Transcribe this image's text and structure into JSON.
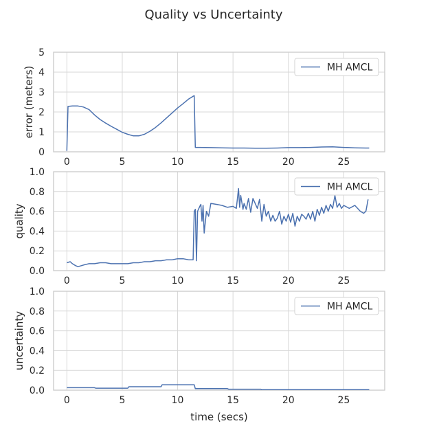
{
  "chart_data": {
    "type": "line",
    "title": "Quality vs Uncertainty",
    "color": "#4c72b0",
    "legend_position": "top-right",
    "grid": true,
    "xlabel": "time (secs)",
    "xlim": [
      -1.2,
      28.7
    ],
    "xticks": [
      0,
      5,
      10,
      15,
      20,
      25
    ],
    "subplots": [
      {
        "ylabel": "error (meters)",
        "ylim": [
          0,
          5
        ],
        "yticks": [
          "0",
          "1",
          "2",
          "3",
          "4",
          "5"
        ],
        "ytick_values": [
          0,
          1,
          2,
          3,
          4,
          5
        ],
        "series": [
          {
            "name": "MH AMCL",
            "x": [
              0,
              0.1,
              0.5,
              1.0,
              1.5,
              2.0,
              2.5,
              3.0,
              3.5,
              4.0,
              4.5,
              5.0,
              5.5,
              6.0,
              6.5,
              7.0,
              7.5,
              8.0,
              8.5,
              9.0,
              9.5,
              10.0,
              10.5,
              11.0,
              11.5,
              11.6,
              12.0,
              13.0,
              14.0,
              15.0,
              16.0,
              17.0,
              18.0,
              19.0,
              20.0,
              21.0,
              22.0,
              23.0,
              24.0,
              25.0,
              26.0,
              27.0,
              27.3
            ],
            "y": [
              0.05,
              2.28,
              2.3,
              2.3,
              2.25,
              2.12,
              1.85,
              1.62,
              1.44,
              1.28,
              1.13,
              0.98,
              0.88,
              0.8,
              0.8,
              0.88,
              1.03,
              1.22,
              1.45,
              1.7,
              1.95,
              2.2,
              2.42,
              2.65,
              2.82,
              0.22,
              0.22,
              0.21,
              0.2,
              0.19,
              0.19,
              0.18,
              0.18,
              0.19,
              0.21,
              0.21,
              0.22,
              0.24,
              0.25,
              0.22,
              0.2,
              0.19,
              0.19
            ]
          }
        ]
      },
      {
        "ylabel": "quality",
        "ylim": [
          0,
          1
        ],
        "yticks": [
          "0.0",
          "0.2",
          "0.4",
          "0.6",
          "0.8",
          "1.0"
        ],
        "ytick_values": [
          0,
          0.2,
          0.4,
          0.6,
          0.8,
          1.0
        ],
        "series": [
          {
            "name": "MH AMCL",
            "x": [
              0,
              0.3,
              0.5,
              0.8,
              1.0,
              1.3,
              1.6,
              2.0,
              2.5,
              3.0,
              3.5,
              4.0,
              4.5,
              5.0,
              5.5,
              6.0,
              6.5,
              7.0,
              7.5,
              8.0,
              8.5,
              9.0,
              9.5,
              10.0,
              10.5,
              11.0,
              11.4,
              11.5,
              11.6,
              11.7,
              11.8,
              12.0,
              12.1,
              12.2,
              12.3,
              12.4,
              12.6,
              12.8,
              13.0,
              13.5,
              14.0,
              14.5,
              15.0,
              15.3,
              15.5,
              15.6,
              15.7,
              15.9,
              16.0,
              16.2,
              16.4,
              16.6,
              16.8,
              17.0,
              17.2,
              17.4,
              17.6,
              17.8,
              18.0,
              18.2,
              18.4,
              18.6,
              18.8,
              19.0,
              19.2,
              19.4,
              19.6,
              19.8,
              20.0,
              20.2,
              20.4,
              20.6,
              20.8,
              21.0,
              21.2,
              21.4,
              21.6,
              21.8,
              22.0,
              22.2,
              22.4,
              22.6,
              22.8,
              23.0,
              23.2,
              23.4,
              23.6,
              23.8,
              24.0,
              24.2,
              24.4,
              24.6,
              24.8,
              25.0,
              25.5,
              26.0,
              26.5,
              26.8,
              27.0,
              27.2
            ],
            "y": [
              0.08,
              0.09,
              0.07,
              0.05,
              0.04,
              0.05,
              0.06,
              0.07,
              0.07,
              0.08,
              0.08,
              0.07,
              0.07,
              0.07,
              0.07,
              0.08,
              0.08,
              0.09,
              0.09,
              0.1,
              0.1,
              0.11,
              0.11,
              0.12,
              0.12,
              0.11,
              0.11,
              0.6,
              0.62,
              0.1,
              0.6,
              0.65,
              0.67,
              0.5,
              0.66,
              0.38,
              0.6,
              0.55,
              0.68,
              0.67,
              0.66,
              0.64,
              0.65,
              0.63,
              0.83,
              0.64,
              0.76,
              0.62,
              0.68,
              0.62,
              0.73,
              0.59,
              0.73,
              0.68,
              0.63,
              0.72,
              0.5,
              0.67,
              0.55,
              0.6,
              0.5,
              0.56,
              0.5,
              0.53,
              0.6,
              0.47,
              0.55,
              0.5,
              0.57,
              0.49,
              0.58,
              0.45,
              0.55,
              0.5,
              0.57,
              0.55,
              0.52,
              0.58,
              0.52,
              0.6,
              0.5,
              0.62,
              0.56,
              0.64,
              0.58,
              0.66,
              0.6,
              0.67,
              0.63,
              0.76,
              0.64,
              0.68,
              0.63,
              0.66,
              0.63,
              0.66,
              0.6,
              0.58,
              0.6,
              0.72
            ]
          }
        ]
      },
      {
        "ylabel": "uncertainty",
        "ylim": [
          0,
          1
        ],
        "yticks": [
          "0.0",
          "0.2",
          "0.4",
          "0.6",
          "0.8",
          "1.0"
        ],
        "ytick_values": [
          0,
          0.2,
          0.4,
          0.6,
          0.8,
          1.0
        ],
        "series": [
          {
            "name": "MH AMCL",
            "x": [
              0,
              2.5,
              2.6,
              5.5,
              5.6,
              8.5,
              8.6,
              11.5,
              11.6,
              14.5,
              14.6,
              17.5,
              17.6,
              27.3
            ],
            "y": [
              0.025,
              0.025,
              0.02,
              0.02,
              0.035,
              0.035,
              0.055,
              0.055,
              0.015,
              0.015,
              0.01,
              0.01,
              0.005,
              0.005
            ]
          }
        ]
      }
    ]
  }
}
